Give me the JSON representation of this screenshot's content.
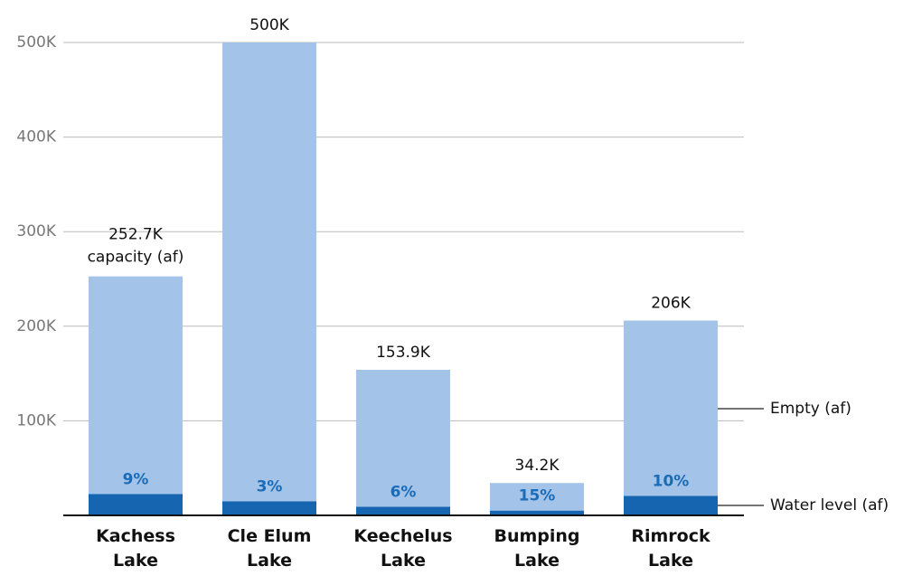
{
  "chart_data": {
    "type": "stacked_bar",
    "categories": [
      "Kachess Lake",
      "Cle Elum Lake",
      "Keechelus Lake",
      "Bumping Lake",
      "Rimrock Lake"
    ],
    "series": [
      {
        "name": "Water level (af)",
        "color": "#1565b0",
        "values": [
          22700,
          15000,
          9200,
          5100,
          20600
        ],
        "value_labels": [
          "9%",
          "3%",
          "6%",
          "15%",
          "10%"
        ]
      },
      {
        "name": "Empty (af)",
        "color": "#a3c4e8",
        "values": [
          230000,
          485000,
          144700,
          29100,
          185400
        ]
      }
    ],
    "capacity": {
      "values": [
        252700,
        500000,
        153900,
        34200,
        206000
      ],
      "value_labels": [
        "252.7K",
        "500K",
        "153.9K",
        "34.2K",
        "206K"
      ]
    },
    "capacity_note": "capacity (af)",
    "ylim": [
      0,
      500000
    ],
    "yticks": [
      {
        "value": 100000,
        "label": "100K"
      },
      {
        "value": 200000,
        "label": "200K"
      },
      {
        "value": 300000,
        "label": "300K"
      },
      {
        "value": 400000,
        "label": "400K"
      },
      {
        "value": 500000,
        "label": "500K"
      }
    ],
    "grid": true
  }
}
